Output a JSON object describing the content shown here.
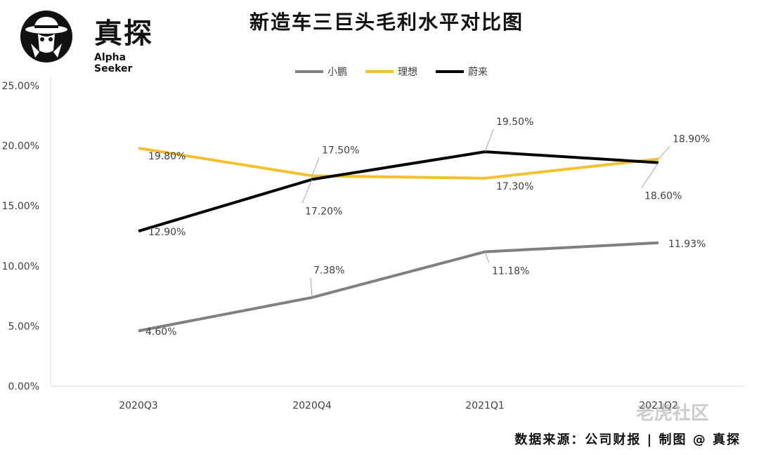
{
  "header": {
    "brand": "真探",
    "brand_sub": "Alpha Seeker",
    "title": "新造车三巨头毛利水平对比图"
  },
  "footer": {
    "source": "数据来源：公司财报 | 制图 @ 真探",
    "watermark": "老虎社区"
  },
  "chart_data": {
    "type": "line",
    "title": "新造车三巨头毛利水平对比图",
    "categories": [
      "2020Q3",
      "2020Q4",
      "2021Q1",
      "2021Q2"
    ],
    "series": [
      {
        "name": "小鹏",
        "color": "#808080",
        "values": [
          4.6,
          7.38,
          11.18,
          11.93
        ],
        "labels": [
          "4.60%",
          "7.38%",
          "11.18%",
          "11.93%"
        ]
      },
      {
        "name": "理想",
        "color": "#F2C12E",
        "values": [
          19.8,
          17.5,
          17.3,
          18.9
        ],
        "labels": [
          "19.80%",
          "17.50%",
          "17.30%",
          "18.90%"
        ]
      },
      {
        "name": "蔚来",
        "color": "#000000",
        "values": [
          12.9,
          17.2,
          19.5,
          18.6
        ],
        "labels": [
          "12.90%",
          "17.20%",
          "19.50%",
          "18.60%"
        ]
      }
    ],
    "ylim": [
      0,
      25
    ],
    "yticks": [
      0,
      5,
      10,
      15,
      20,
      25
    ],
    "ytick_labels": [
      "0.00%",
      "5.00%",
      "10.00%",
      "15.00%",
      "20.00%",
      "25.00%"
    ],
    "grid": false,
    "legend": "top-center"
  }
}
